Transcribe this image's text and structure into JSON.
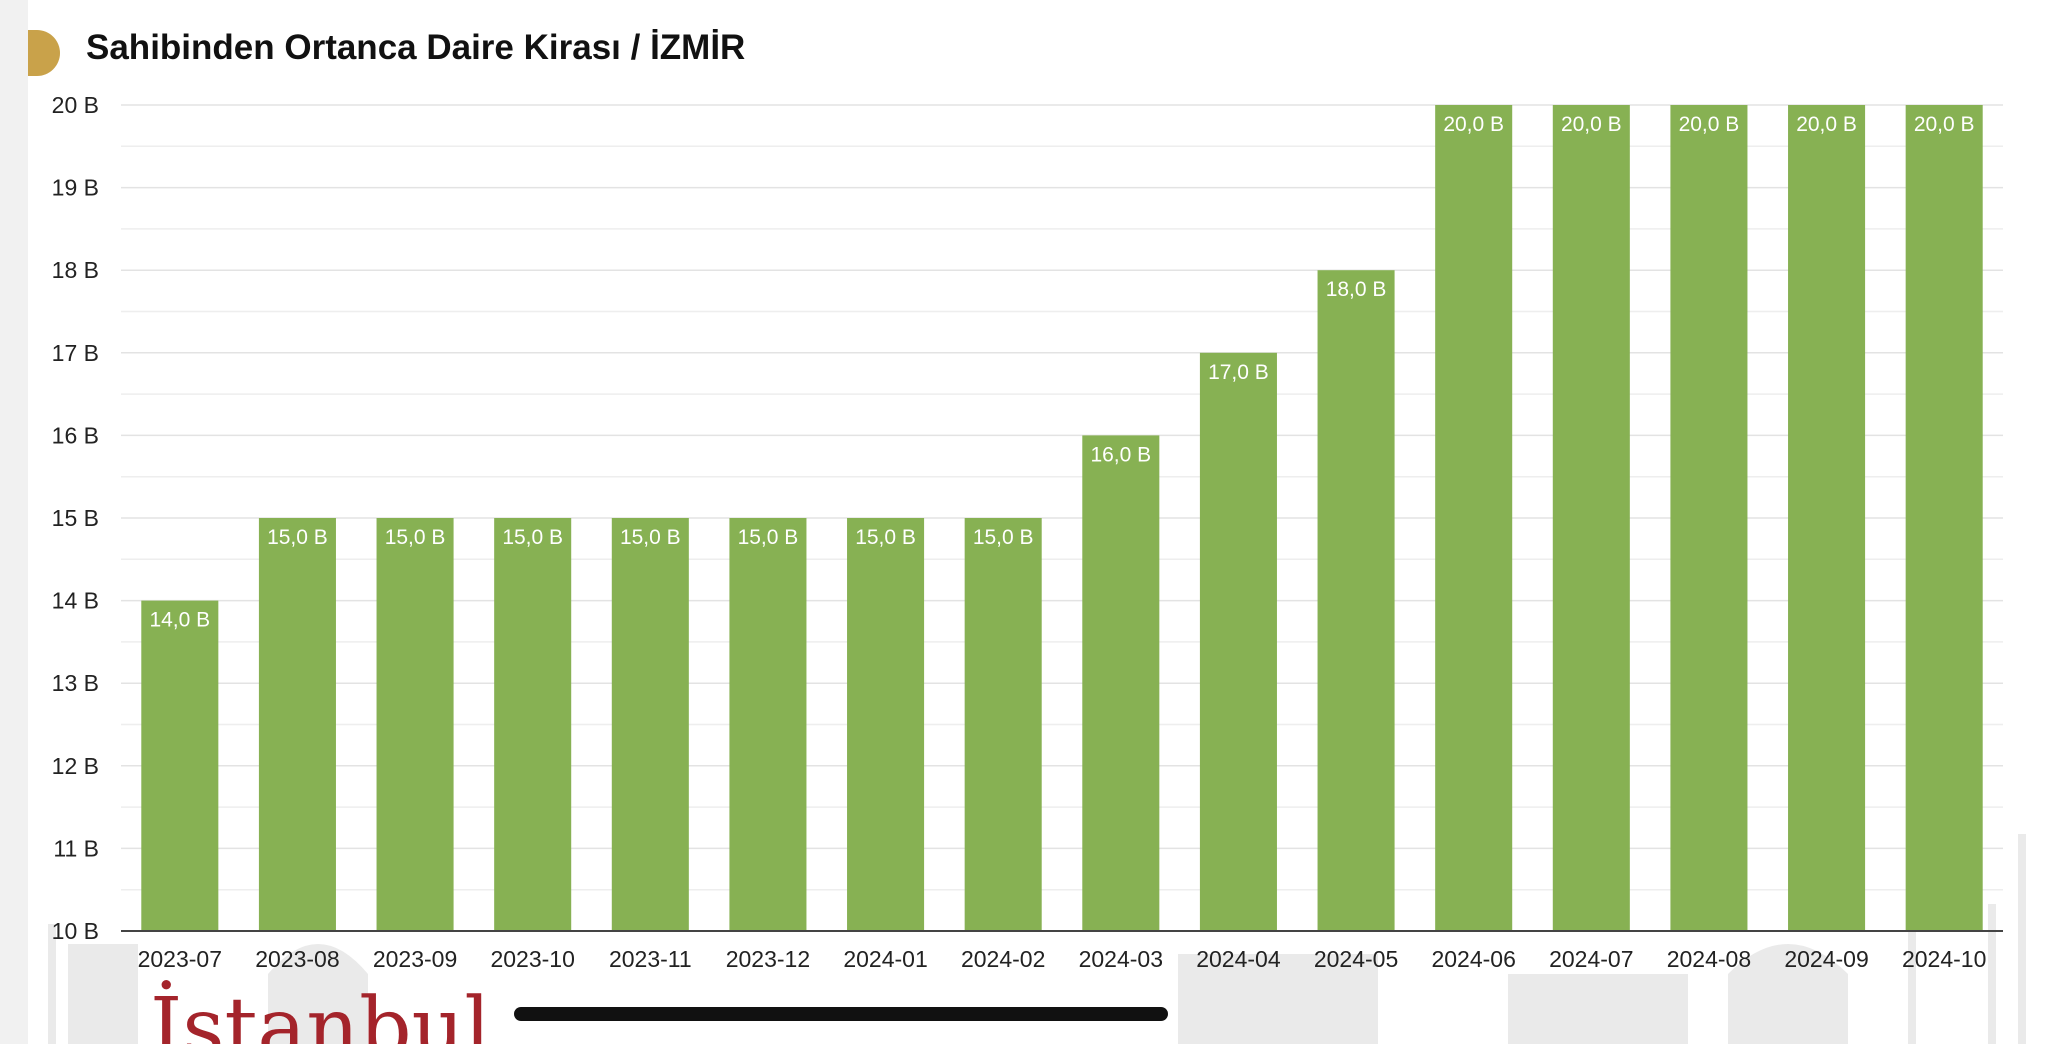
{
  "chart_data": {
    "type": "bar",
    "title": "Sahibinden Ortanca Daire Kirası / İZMİR",
    "xlabel": "",
    "ylabel": "",
    "categories": [
      "2023-07",
      "2023-08",
      "2023-09",
      "2023-10",
      "2023-11",
      "2023-12",
      "2024-01",
      "2024-02",
      "2024-03",
      "2024-04",
      "2024-05",
      "2024-06",
      "2024-07",
      "2024-08",
      "2024-09",
      "2024-10"
    ],
    "values": [
      14,
      15,
      15,
      15,
      15,
      15,
      15,
      15,
      16,
      17,
      18,
      20,
      20,
      20,
      20,
      20
    ],
    "data_labels": [
      "14,0 B",
      "15,0 B",
      "15,0 B",
      "15,0 B",
      "15,0 B",
      "15,0 B",
      "15,0 B",
      "15,0 B",
      "16,0 B",
      "17,0 B",
      "18,0 B",
      "20,0 B",
      "20,0 B",
      "20,0 B",
      "20,0 B",
      "20,0 B"
    ],
    "ylim": [
      10,
      20
    ],
    "yticks": [
      10,
      11,
      12,
      13,
      14,
      15,
      16,
      17,
      18,
      19,
      20
    ],
    "ytick_labels": [
      "10 B",
      "11 B",
      "12 B",
      "13 B",
      "14 B",
      "15 B",
      "16 B",
      "17 B",
      "18 B",
      "19 B",
      "20 B"
    ],
    "grid": true,
    "legend": "none",
    "bar_color": "#87b153"
  },
  "branding": {
    "logo_text": "İstanbul",
    "logo_color": "#a4242b",
    "badge_color": "#c9a24a"
  }
}
